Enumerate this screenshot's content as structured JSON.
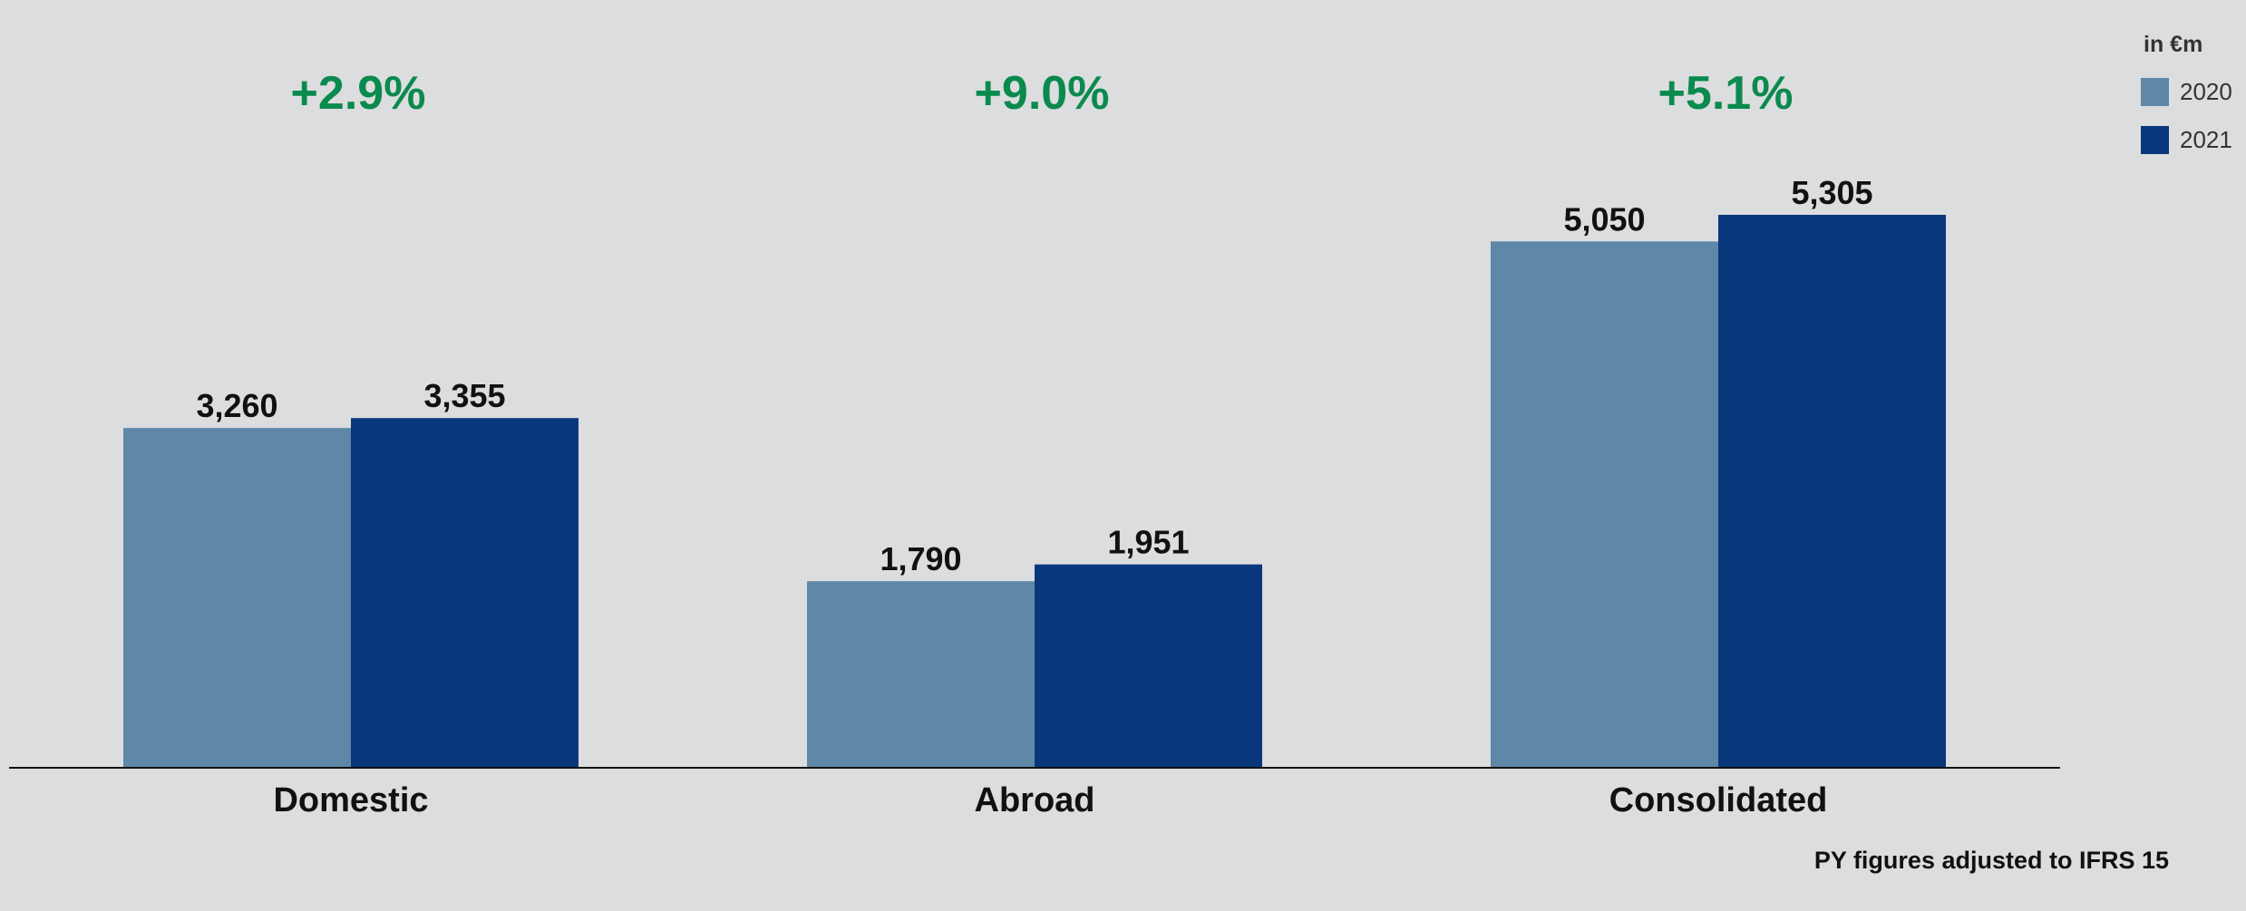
{
  "chart_data": {
    "type": "bar",
    "unit_label": "in €m",
    "categories": [
      "Domestic",
      "Abroad",
      "Consolidated"
    ],
    "series": [
      {
        "name": "2020",
        "values": [
          3260,
          1790,
          5050
        ],
        "labels": [
          "3,260",
          "1,790",
          "5,050"
        ]
      },
      {
        "name": "2021",
        "values": [
          3355,
          1951,
          5305
        ],
        "labels": [
          "3,355",
          "1,951",
          "5,305"
        ]
      }
    ],
    "changes": [
      "+2.9%",
      "+9.0%",
      "+5.1%"
    ],
    "ylim": [
      0,
      5305
    ],
    "grid": false,
    "legend": "top-right",
    "footnote": "PY figures adjusted to IFRS 15"
  },
  "colors": {
    "background": "#dcdddf",
    "series_2020": "#5e87a8",
    "series_2021": "#08377b",
    "change": "#0b8a4d",
    "axis": "#111111"
  }
}
